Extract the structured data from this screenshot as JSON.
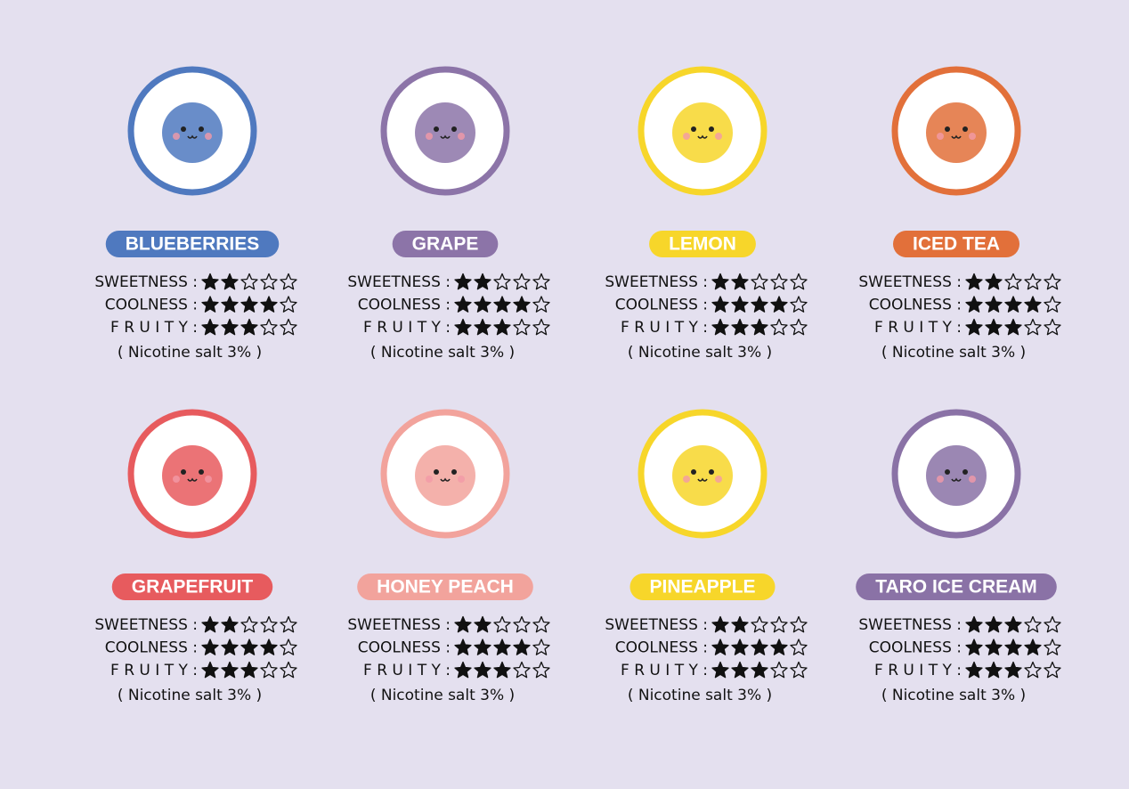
{
  "rating_range": [
    0,
    5
  ],
  "flavors": [
    {
      "name": "BLUEBERRIES",
      "color": "#4f79bf",
      "ratings": [
        {
          "label": "SWEETNESS :",
          "value": 2
        },
        {
          "label": "COOLNESS :",
          "value": 4
        },
        {
          "label": "F R U I T Y :",
          "value": 3
        }
      ],
      "note": "( Nicotine salt  3% )"
    },
    {
      "name": "GRAPE",
      "color": "#8c74a8",
      "ratings": [
        {
          "label": "SWEETNESS :",
          "value": 2
        },
        {
          "label": "COOLNESS :",
          "value": 4
        },
        {
          "label": "F R U I T Y :",
          "value": 3
        }
      ],
      "note": "( Nicotine salt  3% )"
    },
    {
      "name": "LEMON",
      "color": "#f7d62a",
      "ratings": [
        {
          "label": "SWEETNESS :",
          "value": 2
        },
        {
          "label": "COOLNESS :",
          "value": 4
        },
        {
          "label": "F R U I T Y :",
          "value": 3
        }
      ],
      "note": "( Nicotine salt  3% )"
    },
    {
      "name": "ICED TEA",
      "color": "#e2703a",
      "ratings": [
        {
          "label": "SWEETNESS :",
          "value": 2
        },
        {
          "label": "COOLNESS :",
          "value": 4
        },
        {
          "label": "F R U I T Y :",
          "value": 3
        }
      ],
      "note": "( Nicotine salt  3% )"
    },
    {
      "name": "GRAPEFRUIT",
      "color": "#e75b5e",
      "ratings": [
        {
          "label": "SWEETNESS :",
          "value": 2
        },
        {
          "label": "COOLNESS :",
          "value": 4
        },
        {
          "label": "F R U I T Y :",
          "value": 3
        }
      ],
      "note": "( Nicotine salt  3% )"
    },
    {
      "name": "HONEY PEACH",
      "color": "#f2a39c",
      "ratings": [
        {
          "label": "SWEETNESS :",
          "value": 2
        },
        {
          "label": "COOLNESS :",
          "value": 4
        },
        {
          "label": "F R U I T Y :",
          "value": 3
        }
      ],
      "note": "( Nicotine salt  3% )"
    },
    {
      "name": "PINEAPPLE",
      "color": "#f7d62a",
      "ratings": [
        {
          "label": "SWEETNESS :",
          "value": 2
        },
        {
          "label": "COOLNESS :",
          "value": 4
        },
        {
          "label": "F R U I T Y :",
          "value": 3
        }
      ],
      "note": "( Nicotine salt  3% )"
    },
    {
      "name": "TARO ICE CREAM",
      "color": "#8a72a6",
      "ratings": [
        {
          "label": "SWEETNESS :",
          "value": 3
        },
        {
          "label": "COOLNESS :",
          "value": 4
        },
        {
          "label": "F R U I T Y :",
          "value": 3
        }
      ],
      "note": "( Nicotine salt  3% )"
    }
  ]
}
